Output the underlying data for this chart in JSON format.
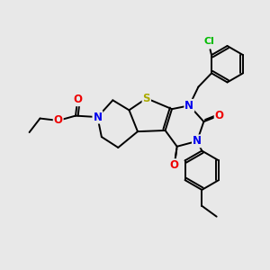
{
  "bg_color": "#e8e8e8",
  "bond_color": "#000000",
  "bond_lw": 1.4,
  "atom_colors": {
    "N": "#0000ee",
    "O": "#ee0000",
    "S": "#aaaa00",
    "Cl": "#00bb00",
    "C": "#000000"
  },
  "fs": 8.5
}
